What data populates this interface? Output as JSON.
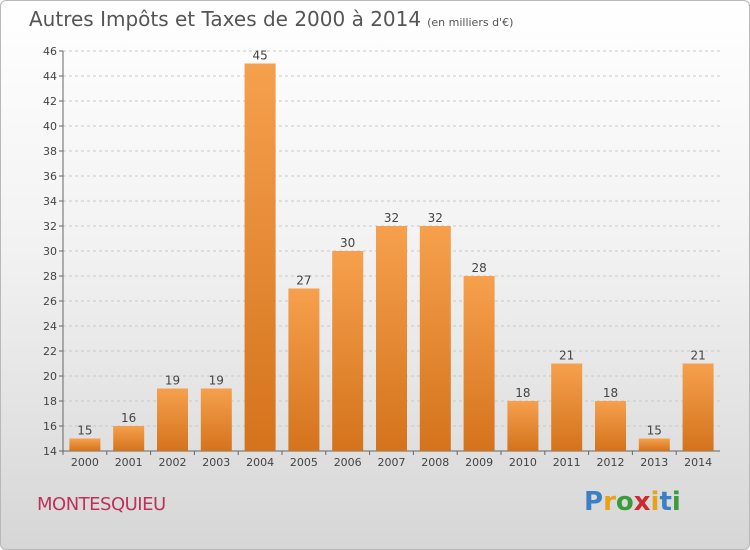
{
  "header": {
    "title": "Autres Impôts et Taxes de 2000 à 2014",
    "subtitle": "(en milliers d'€)"
  },
  "footer": {
    "location": "MONTESQUIEU",
    "logo_letters": [
      "P",
      "r",
      "o",
      "x",
      "i",
      "t",
      "i"
    ],
    "logo_colors": [
      "#3b7fc4",
      "#e6a21a",
      "#3b9b3b",
      "#d02a2a",
      "#e6a21a",
      "#3b7fc4",
      "#3b9b3b"
    ]
  },
  "colors": {
    "bar_light": "#f6a04d",
    "bar_dark": "#d4731c",
    "grid": "#c8c8c8"
  },
  "chart_data": {
    "type": "bar",
    "title": "Autres Impôts et Taxes de 2000 à 2014",
    "xlabel": "",
    "ylabel": "",
    "ylim": [
      14,
      46
    ],
    "yticks": [
      14,
      16,
      18,
      20,
      22,
      24,
      26,
      28,
      30,
      32,
      34,
      36,
      38,
      40,
      42,
      44,
      46
    ],
    "grid": true,
    "categories": [
      "2000",
      "2001",
      "2002",
      "2003",
      "2004",
      "2005",
      "2006",
      "2007",
      "2008",
      "2009",
      "2010",
      "2011",
      "2012",
      "2013",
      "2014"
    ],
    "values": [
      15,
      16,
      19,
      19,
      45,
      27,
      30,
      32,
      32,
      28,
      18,
      21,
      18,
      15,
      21
    ]
  }
}
